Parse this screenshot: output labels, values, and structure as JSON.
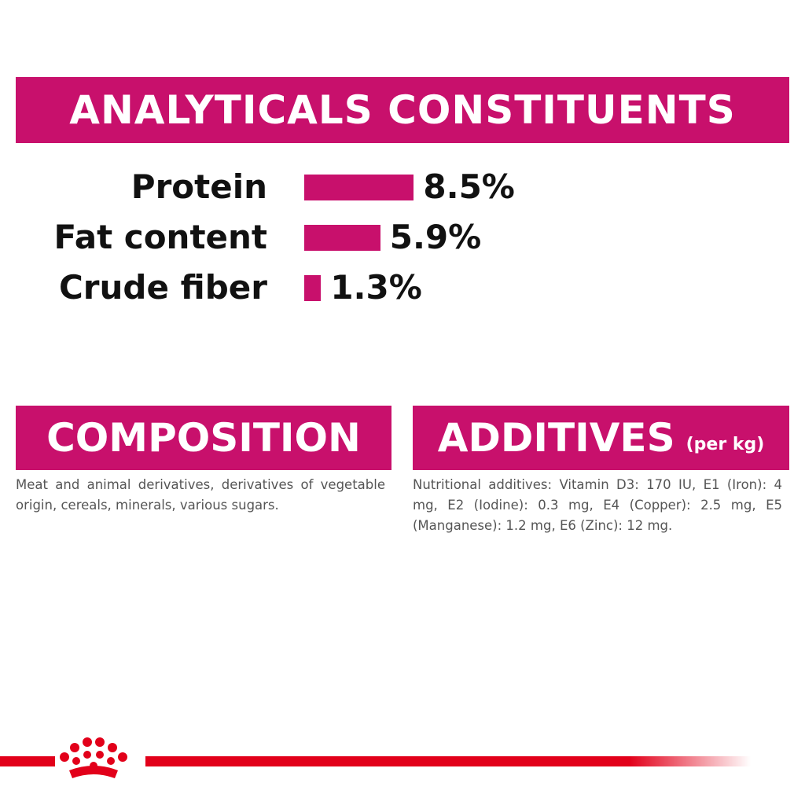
{
  "analyticals": {
    "title": "ANALYTICALS CONSTITUENTS",
    "type": "bar",
    "color": "#c8106c",
    "categories": [
      "Protein",
      "Fat content",
      "Crude fiber"
    ],
    "values": [
      8.5,
      5.9,
      1.3
    ],
    "value_labels": [
      "8.5%",
      "5.9%",
      "1.3%"
    ]
  },
  "composition": {
    "title": "COMPOSITION",
    "text": "Meat and animal derivatives, derivatives of vegetable origin, cereals, minerals, various sugars."
  },
  "additives": {
    "title": "ADDITIVES",
    "subtitle": "(per kg)",
    "text": "Nutritional additives: Vitamin D3: 170 IU, E1 (Iron): 4 mg, E2 (Iodine): 0.3 mg, E4 (Copper): 2.5 mg, E5 (Manganese): 1.2 mg, E6 (Zinc): 12 mg."
  }
}
